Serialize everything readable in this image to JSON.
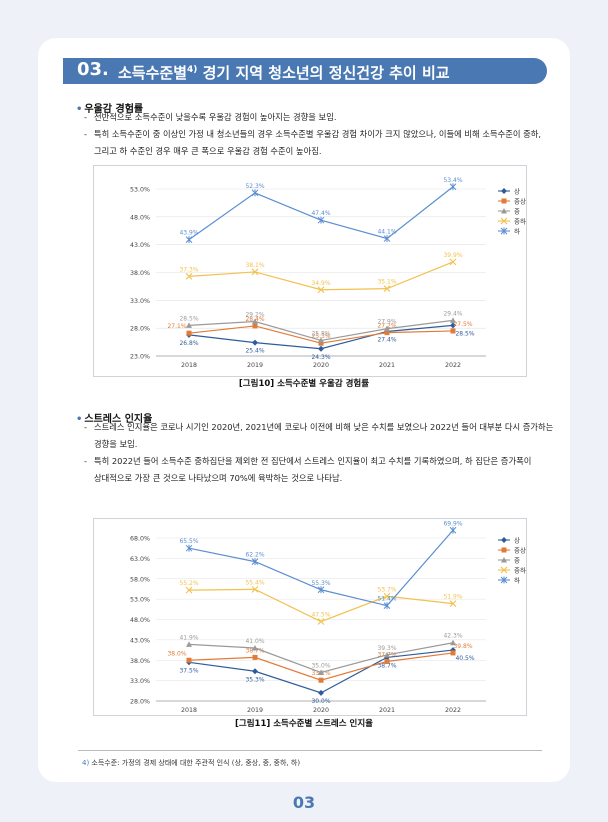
{
  "title": {
    "number": "03.",
    "text": "소득수준별",
    "sup": "4)",
    "text2": " 경기 지역 청소년의 정신건강 추이 비교"
  },
  "section1": {
    "heading": "우울감 경험률",
    "lines": [
      "전반적으로 소득수준이 낮을수록 우울감 경험이 높아지는 경향을 보임.",
      "특히 소득수준이 중 이상인 가정 내 청소년들의 경우 소득수준별 우울감 경험 차이가 크지 않았으나, 이들에 비해 소득수준이 중하,",
      "그리고 하 수준인 경우 매우 큰 폭으로 우울감 경험 수준이 높아짐."
    ],
    "caption": "[그림10] 소득수준별 우울감 경험률"
  },
  "section2": {
    "heading": "스트레스 인지율",
    "lines": [
      "스트레스 인지율은 코로나 시기인 2020년, 2021년에 코로나 이전에 비해 낮은 수치를 보였으나 2022년 들어 대부분 다시 증가하는",
      "경향을 보임.",
      "특히 2022년 들어 소득수준 중하집단을 제외한 전 집단에서 스트레스 인지율이 최고 수치를 기록하였으며, 하 집단은 증가폭이",
      "상대적으로 가장 큰 것으로 나타났으며 70%에 육박하는 것으로 나타남."
    ],
    "caption": "[그림11] 소득수준별 스트레스 인지율"
  },
  "footnote": {
    "num": "4)",
    "text": "소득수준: 가정의 경제 상태에 대한 주관적 인식 (상, 중상, 중, 중하, 하)"
  },
  "page_number": "03",
  "colors": {
    "상": "#2e5c9a",
    "중상": "#e07b39",
    "중": "#9a9a9a",
    "중하": "#f2c14e",
    "하": "#5b8ed1"
  },
  "chart_data": [
    {
      "type": "line",
      "categories": [
        "2018",
        "2019",
        "2020",
        "2021",
        "2022"
      ],
      "ylim": [
        23.0,
        53.0
      ],
      "yticks": [
        "23.0%",
        "28.0%",
        "33.0%",
        "38.0%",
        "43.0%",
        "48.0%",
        "53.0%"
      ],
      "series": [
        {
          "name": "상",
          "values": [
            26.8,
            25.4,
            24.3,
            27.4,
            28.5
          ],
          "labels": [
            "26.8%",
            "25.4%",
            "24.3%",
            "27.4%",
            "28.5%"
          ]
        },
        {
          "name": "중상",
          "values": [
            27.1,
            28.4,
            25.3,
            27.2,
            27.5
          ],
          "labels": [
            "27.1%",
            "28.4%",
            "25.3%",
            "27.2%",
            "27.5%"
          ]
        },
        {
          "name": "중",
          "values": [
            28.5,
            29.2,
            25.8,
            27.9,
            29.4
          ],
          "labels": [
            "28.5%",
            "29.2%",
            "25.8%",
            "27.9%",
            "29.4%"
          ]
        },
        {
          "name": "중하",
          "values": [
            37.3,
            38.1,
            34.9,
            35.1,
            39.9
          ],
          "labels": [
            "37.3%",
            "38.1%",
            "34.9%",
            "35.1%",
            "39.9%"
          ]
        },
        {
          "name": "하",
          "values": [
            43.9,
            52.3,
            47.4,
            44.1,
            53.4
          ],
          "labels": [
            "43.9%",
            "52.3%",
            "47.4%",
            "44.1%",
            "53.4%"
          ]
        }
      ]
    },
    {
      "type": "line",
      "categories": [
        "2018",
        "2019",
        "2020",
        "2021",
        "2022"
      ],
      "ylim": [
        28.0,
        68.0
      ],
      "yticks": [
        "28.0%",
        "33.0%",
        "38.0%",
        "43.0%",
        "48.0%",
        "53.0%",
        "58.0%",
        "63.0%",
        "68.0%"
      ],
      "series": [
        {
          "name": "상",
          "values": [
            37.5,
            35.3,
            30.0,
            38.7,
            40.5
          ],
          "labels": [
            "37.5%",
            "35.3%",
            "30.0%",
            "38.7%",
            "40.5%"
          ]
        },
        {
          "name": "중상",
          "values": [
            38.0,
            38.7,
            33.1,
            37.7,
            39.8
          ],
          "labels": [
            "38.0%",
            "38.7%",
            "33.1%",
            "37.7%",
            "39.8%"
          ]
        },
        {
          "name": "중",
          "values": [
            41.9,
            41.0,
            35.0,
            39.3,
            42.3
          ],
          "labels": [
            "41.9%",
            "41.0%",
            "35.0%",
            "39.3%",
            "42.3%"
          ]
        },
        {
          "name": "중하",
          "values": [
            55.2,
            55.4,
            47.5,
            53.7,
            51.9
          ],
          "labels": [
            "55.2%",
            "55.4%",
            "47.5%",
            "53.7%",
            "51.9%"
          ]
        },
        {
          "name": "하",
          "values": [
            65.5,
            62.2,
            55.3,
            51.4,
            69.9
          ],
          "labels": [
            "65.5%",
            "62.2%",
            "55.3%",
            "51.4%",
            "69.9%"
          ]
        }
      ]
    }
  ]
}
